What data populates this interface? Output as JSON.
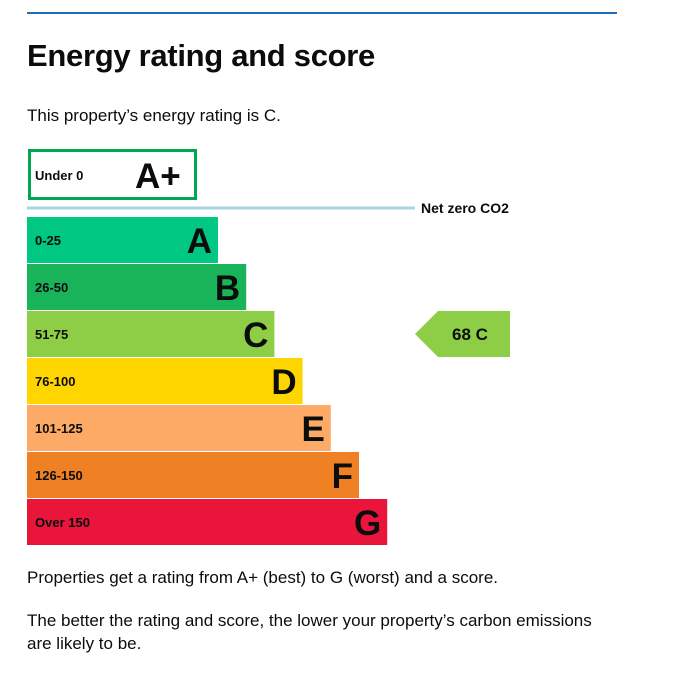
{
  "page": {
    "title": "Energy rating and score",
    "intro": "This property’s energy rating is C.",
    "footer1": "Properties get a rating from A+ (best) to G (worst) and a score.",
    "footer2": "The better the rating and score, the lower your property’s carbon emissions are likely to be."
  },
  "chart_data": {
    "type": "bar",
    "title": "",
    "categories": [
      "A+",
      "A",
      "B",
      "C",
      "D",
      "E",
      "F",
      "G"
    ],
    "bands": [
      {
        "letter": "A+",
        "range": "Under 0",
        "color": "#00a650",
        "style": "outline"
      },
      {
        "letter": "A",
        "range": "0-25",
        "color": "#00c781"
      },
      {
        "letter": "B",
        "range": "26-50",
        "color": "#19b459"
      },
      {
        "letter": "C",
        "range": "51-75",
        "color": "#8dce46"
      },
      {
        "letter": "D",
        "range": "76-100",
        "color": "#ffd500"
      },
      {
        "letter": "E",
        "range": "101-125",
        "color": "#fcaa65"
      },
      {
        "letter": "F",
        "range": "126-150",
        "color": "#ef8023"
      },
      {
        "letter": "G",
        "range": "Over 150",
        "color": "#e9153b"
      }
    ],
    "net_zero_label": "Net zero CO2",
    "net_zero_line_color": "#a9d3e8",
    "current_rating": {
      "score": 68,
      "letter": "C",
      "label": "68  C",
      "color": "#8dce46"
    }
  }
}
